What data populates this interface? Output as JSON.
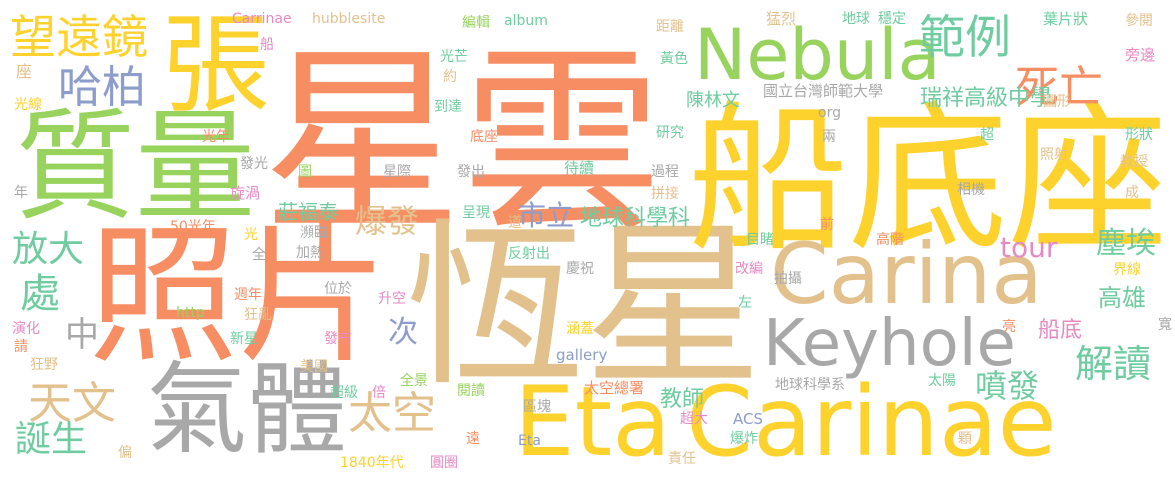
{
  "palette": {
    "orange": "#f78e63",
    "tan": "#e3c18c",
    "yellow": "#fed22c",
    "green": "#98d35e",
    "gray": "#a8a8a8",
    "blue": "#8c9dcb",
    "pink": "#e78ac3",
    "teal": "#6fcca0"
  },
  "words": [
    {
      "text": "星雲",
      "color": "orange"
    },
    {
      "text": "恆星",
      "color": "tan"
    },
    {
      "text": "船底座",
      "color": "yellow"
    },
    {
      "text": "照片",
      "color": "orange"
    },
    {
      "text": "質量",
      "color": "green"
    },
    {
      "text": "張",
      "color": "yellow"
    },
    {
      "text": "Eta",
      "color": "yellow"
    },
    {
      "text": "Carinae",
      "color": "yellow"
    },
    {
      "text": "Carina",
      "color": "tan"
    },
    {
      "text": "Nebula",
      "color": "green"
    },
    {
      "text": "氣體",
      "color": "gray"
    },
    {
      "text": "Keyhole",
      "color": "gray"
    },
    {
      "text": "望遠鏡",
      "color": "yellow"
    },
    {
      "text": "哈柏",
      "color": "blue"
    },
    {
      "text": "範例",
      "color": "teal"
    },
    {
      "text": "死亡",
      "color": "orange"
    },
    {
      "text": "爆發",
      "color": "tan"
    },
    {
      "text": "市立",
      "color": "blue"
    },
    {
      "text": "地球科學科",
      "color": "teal"
    },
    {
      "text": "tour",
      "color": "pink"
    },
    {
      "text": "塵埃",
      "color": "teal"
    },
    {
      "text": "高雄",
      "color": "teal"
    },
    {
      "text": "解讀",
      "color": "teal"
    },
    {
      "text": "噴發",
      "color": "teal"
    },
    {
      "text": "船底",
      "color": "pink"
    },
    {
      "text": "太空",
      "color": "tan"
    },
    {
      "text": "天文",
      "color": "tan"
    },
    {
      "text": "誕生",
      "color": "teal"
    },
    {
      "text": "放大",
      "color": "teal"
    },
    {
      "text": "處",
      "color": "teal"
    },
    {
      "text": "中",
      "color": "gray"
    },
    {
      "text": "次",
      "color": "blue"
    },
    {
      "text": "教師",
      "color": "teal"
    },
    {
      "text": "瑞祥高級中學",
      "color": "teal"
    },
    {
      "text": "國立台灣師範大學",
      "color": "gray"
    },
    {
      "text": "莊福泰",
      "color": "teal"
    },
    {
      "text": "陳林文",
      "color": "teal"
    },
    {
      "text": "Carrinae",
      "color": "pink"
    },
    {
      "text": "hubblesite",
      "color": "tan"
    },
    {
      "text": "album",
      "color": "teal"
    },
    {
      "text": "編輯",
      "color": "green"
    },
    {
      "text": "猛烈",
      "color": "tan"
    },
    {
      "text": "地球",
      "color": "teal"
    },
    {
      "text": "穩定",
      "color": "teal"
    },
    {
      "text": "葉片狀",
      "color": "teal"
    },
    {
      "text": "參閱",
      "color": "tan"
    },
    {
      "text": "旁邊",
      "color": "pink"
    },
    {
      "text": "圓形",
      "color": "tan"
    },
    {
      "text": "形狀",
      "color": "teal"
    },
    {
      "text": "教授",
      "color": "tan"
    },
    {
      "text": "照射",
      "color": "tan"
    },
    {
      "text": "界線",
      "color": "yellow"
    },
    {
      "text": "光芒",
      "color": "teal"
    },
    {
      "text": "約",
      "color": "tan"
    },
    {
      "text": "距離",
      "color": "tan"
    },
    {
      "text": "黃色",
      "color": "teal"
    },
    {
      "text": "到達",
      "color": "teal"
    },
    {
      "text": "研究",
      "color": "teal"
    },
    {
      "text": "底座",
      "color": "orange"
    },
    {
      "text": "光年",
      "color": "orange"
    },
    {
      "text": "發光",
      "color": "gray"
    },
    {
      "text": "星際",
      "color": "gray"
    },
    {
      "text": "發出",
      "color": "gray"
    },
    {
      "text": "待續",
      "color": "teal"
    },
    {
      "text": "過程",
      "color": "gray"
    },
    {
      "text": "拼接",
      "color": "tan"
    },
    {
      "text": "相機",
      "color": "gray"
    },
    {
      "text": "前",
      "color": "orange"
    },
    {
      "text": "高階",
      "color": "orange"
    },
    {
      "text": "目睹",
      "color": "teal"
    },
    {
      "text": "慶祝",
      "color": "gray"
    },
    {
      "text": "反射出",
      "color": "teal"
    },
    {
      "text": "改編",
      "color": "pink"
    },
    {
      "text": "拍攝",
      "color": "gray"
    },
    {
      "text": "左",
      "color": "teal"
    },
    {
      "text": "亮",
      "color": "orange"
    },
    {
      "text": "寬",
      "color": "gray"
    },
    {
      "text": "太陽",
      "color": "teal"
    },
    {
      "text": "地球科學系",
      "color": "gray"
    },
    {
      "text": "ACS",
      "color": "blue"
    },
    {
      "text": "超大",
      "color": "pink"
    },
    {
      "text": "爆炸",
      "color": "teal"
    },
    {
      "text": "責任",
      "color": "tan"
    },
    {
      "text": "顆",
      "color": "tan"
    },
    {
      "text": "太空總署",
      "color": "orange"
    },
    {
      "text": "閱讀",
      "color": "green"
    },
    {
      "text": "區塊",
      "color": "gray"
    },
    {
      "text": "Eta",
      "color": "blue"
    },
    {
      "text": "圓圈",
      "color": "pink"
    },
    {
      "text": "1840年代",
      "color": "yellow"
    },
    {
      "text": "遠",
      "color": "orange"
    },
    {
      "text": "全景",
      "color": "green"
    },
    {
      "text": "超級",
      "color": "teal"
    },
    {
      "text": "倍",
      "color": "pink"
    },
    {
      "text": "美國",
      "color": "tan"
    },
    {
      "text": "發布",
      "color": "pink"
    },
    {
      "text": "gallery",
      "color": "blue"
    },
    {
      "text": "涵蓋",
      "color": "yellow"
    },
    {
      "text": "升空",
      "color": "pink"
    },
    {
      "text": "org",
      "color": "gray"
    },
    {
      "text": "http",
      "color": "green"
    },
    {
      "text": "位於",
      "color": "gray"
    },
    {
      "text": "加熱",
      "color": "gray"
    },
    {
      "text": "瀕臨",
      "color": "gray"
    },
    {
      "text": "呈現",
      "color": "teal"
    },
    {
      "text": "道",
      "color": "tan"
    },
    {
      "text": "50光年",
      "color": "orange"
    },
    {
      "text": "旋渦",
      "color": "pink"
    },
    {
      "text": "光",
      "color": "yellow"
    },
    {
      "text": "全",
      "color": "gray"
    },
    {
      "text": "週年",
      "color": "orange"
    },
    {
      "text": "狂亂",
      "color": "tan"
    },
    {
      "text": "新星",
      "color": "teal"
    },
    {
      "text": "演化",
      "color": "pink"
    },
    {
      "text": "請",
      "color": "orange"
    },
    {
      "text": "狂野",
      "color": "tan"
    },
    {
      "text": "偏",
      "color": "tan"
    },
    {
      "text": "年",
      "color": "gray"
    },
    {
      "text": "光線",
      "color": "yellow"
    },
    {
      "text": "座",
      "color": "tan"
    },
    {
      "text": "船",
      "color": "pink"
    },
    {
      "text": "圖",
      "color": "green"
    },
    {
      "text": "兩",
      "color": "gray"
    },
    {
      "text": "超",
      "color": "teal"
    },
    {
      "text": "成",
      "color": "tan"
    }
  ]
}
